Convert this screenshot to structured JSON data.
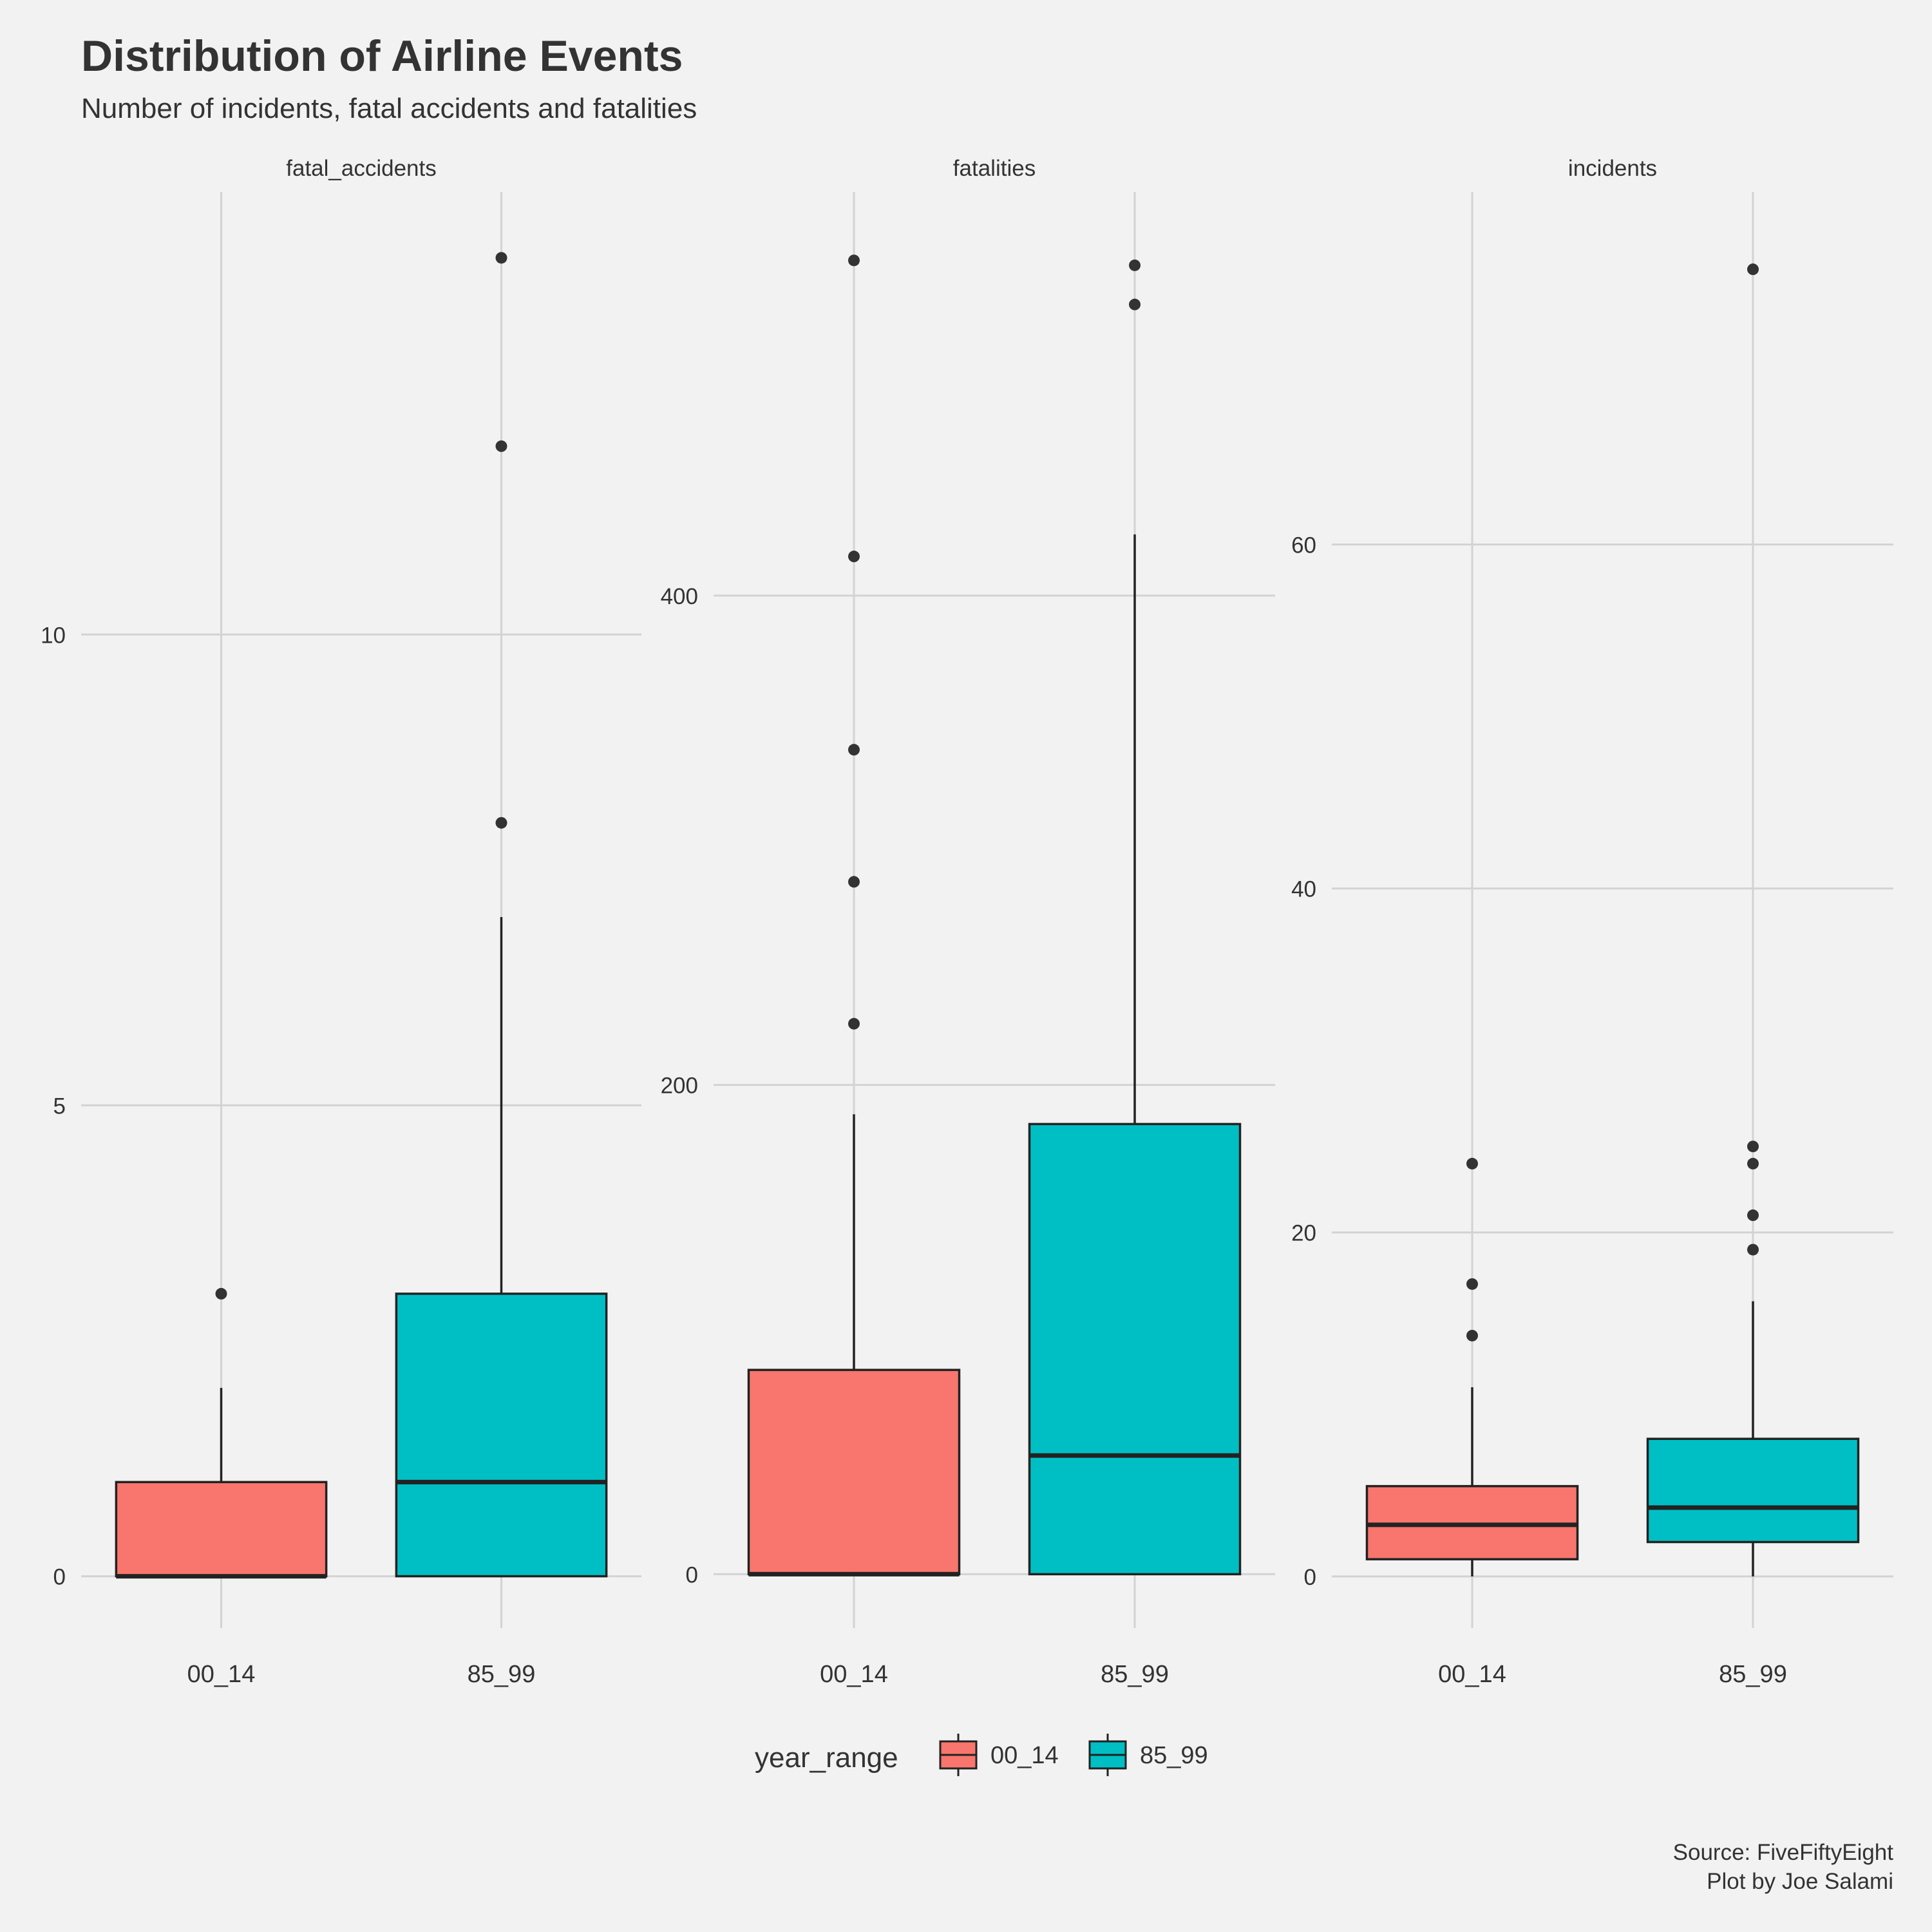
{
  "title": "Distribution of Airline Events",
  "subtitle": "Number of incidents, fatal accidents and fatalities",
  "caption_lines": [
    "Source: FiveFiftyEight",
    "Plot by Joe Salami"
  ],
  "legend": {
    "title": "year_range",
    "items": [
      {
        "label": "00_14",
        "color": "#f8766d"
      },
      {
        "label": "85_99",
        "color": "#00bfc4"
      }
    ]
  },
  "colors": {
    "background": "#f2f2f2",
    "grid": "#d3d3d3",
    "box_outline": "#222222",
    "outlier": "#333333",
    "text": "#333333"
  },
  "chart_data": [
    {
      "type": "box",
      "facet": "fatal_accidents",
      "categories": [
        "00_14",
        "85_99"
      ],
      "ylim": [
        -0.55,
        14.7
      ],
      "yticks": [
        0,
        5,
        10
      ],
      "grid": true,
      "boxes": [
        {
          "category": "00_14",
          "q1": 0,
          "median": 0,
          "q3": 1,
          "whisker_low": 0,
          "whisker_high": 2,
          "outliers": [
            3
          ]
        },
        {
          "category": "85_99",
          "q1": 0,
          "median": 1,
          "q3": 3,
          "whisker_low": 0,
          "whisker_high": 7,
          "outliers": [
            8,
            12,
            14
          ]
        }
      ]
    },
    {
      "type": "box",
      "facet": "fatalities",
      "categories": [
        "00_14",
        "85_99"
      ],
      "ylim": [
        -22,
        565
      ],
      "yticks": [
        0,
        200,
        400
      ],
      "grid": true,
      "boxes": [
        {
          "category": "00_14",
          "q1": 0,
          "median": 0,
          "q3": 83.5,
          "whisker_low": 0,
          "whisker_high": 188,
          "outliers": [
            225,
            283,
            337,
            416,
            537
          ]
        },
        {
          "category": "85_99",
          "q1": 0,
          "median": 48.5,
          "q3": 184,
          "whisker_low": 0,
          "whisker_high": 425,
          "outliers": [
            519,
            535
          ]
        }
      ]
    },
    {
      "type": "box",
      "facet": "incidents",
      "categories": [
        "00_14",
        "85_99"
      ],
      "ylim": [
        -3.0,
        80.5
      ],
      "yticks": [
        0,
        20,
        40,
        60
      ],
      "grid": true,
      "boxes": [
        {
          "category": "00_14",
          "q1": 1,
          "median": 3,
          "q3": 5.25,
          "whisker_low": 0,
          "whisker_high": 11,
          "outliers": [
            14,
            17,
            24
          ]
        },
        {
          "category": "85_99",
          "q1": 2,
          "median": 4,
          "q3": 8,
          "whisker_low": 0,
          "whisker_high": 16,
          "outliers": [
            19,
            21,
            24,
            25,
            76
          ]
        }
      ]
    }
  ]
}
